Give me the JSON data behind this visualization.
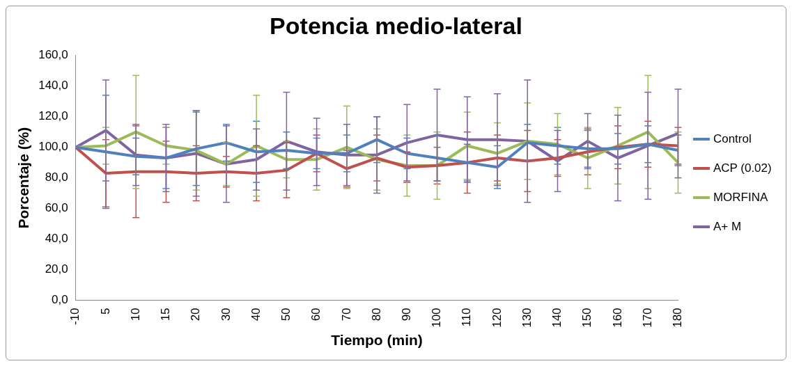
{
  "chart_data": {
    "type": "line",
    "title": "Potencia medio-lateral",
    "xlabel": "Tiempo (min)",
    "ylabel": "Porcentaje (%)",
    "categories": [
      "-10",
      "5",
      "10",
      "15",
      "20",
      "30",
      "40",
      "50",
      "60",
      "70",
      "80",
      "90",
      "100",
      "110",
      "120",
      "130",
      "140",
      "150",
      "160",
      "170",
      "180"
    ],
    "ylim": [
      0,
      160
    ],
    "yticks": [
      {
        "value": 0,
        "label": "0,0"
      },
      {
        "value": 20,
        "label": "20,0"
      },
      {
        "value": 40,
        "label": "40,0"
      },
      {
        "value": 60,
        "label": "60,0"
      },
      {
        "value": 80,
        "label": "80,0"
      },
      {
        "value": 100,
        "label": "100,0"
      },
      {
        "value": 120,
        "label": "120,0"
      },
      {
        "value": 140,
        "label": "140,0"
      },
      {
        "value": 160,
        "label": "160,0"
      }
    ],
    "grid": false,
    "legend": "right",
    "marker": "none",
    "line_style": "solid",
    "series": [
      {
        "name": "Control",
        "color": "#4f81bd",
        "values": [
          100,
          97,
          94,
          93,
          99,
          103,
          97,
          98,
          96,
          96,
          105,
          96,
          93,
          90,
          87,
          103,
          101,
          99,
          99,
          102,
          98
        ],
        "errors": [
          null,
          37,
          12,
          20,
          24,
          12,
          20,
          12,
          10,
          12,
          15,
          10,
          15,
          12,
          14,
          12,
          12,
          12,
          10,
          12,
          10
        ]
      },
      {
        "name": "ACP (0.02)",
        "color": "#c0504d",
        "values": [
          100,
          83,
          84,
          84,
          83,
          84,
          83,
          85,
          96,
          86,
          93,
          87,
          88,
          90,
          93,
          91,
          93,
          97,
          100,
          102,
          101
        ],
        "errors": [
          null,
          22,
          30,
          20,
          18,
          10,
          18,
          18,
          12,
          12,
          15,
          10,
          12,
          20,
          15,
          20,
          12,
          15,
          14,
          15,
          12
        ]
      },
      {
        "name": "MORFINA",
        "color": "#9bbb59",
        "values": [
          100,
          101,
          110,
          101,
          98,
          89,
          101,
          92,
          92,
          100,
          92,
          88,
          88,
          101,
          96,
          104,
          102,
          93,
          101,
          110,
          90
        ],
        "errors": [
          null,
          12,
          37,
          12,
          26,
          14,
          33,
          12,
          20,
          27,
          20,
          20,
          22,
          22,
          20,
          25,
          20,
          20,
          25,
          37,
          20
        ]
      },
      {
        "name": "A+ M",
        "color": "#8064a2",
        "values": [
          100,
          111,
          95,
          93,
          96,
          89,
          92,
          104,
          97,
          95,
          95,
          103,
          108,
          105,
          105,
          104,
          91,
          104,
          93,
          101,
          109
        ],
        "errors": [
          null,
          33,
          20,
          22,
          28,
          25,
          20,
          32,
          22,
          20,
          25,
          25,
          30,
          28,
          30,
          40,
          20,
          18,
          28,
          35,
          29
        ]
      }
    ]
  }
}
